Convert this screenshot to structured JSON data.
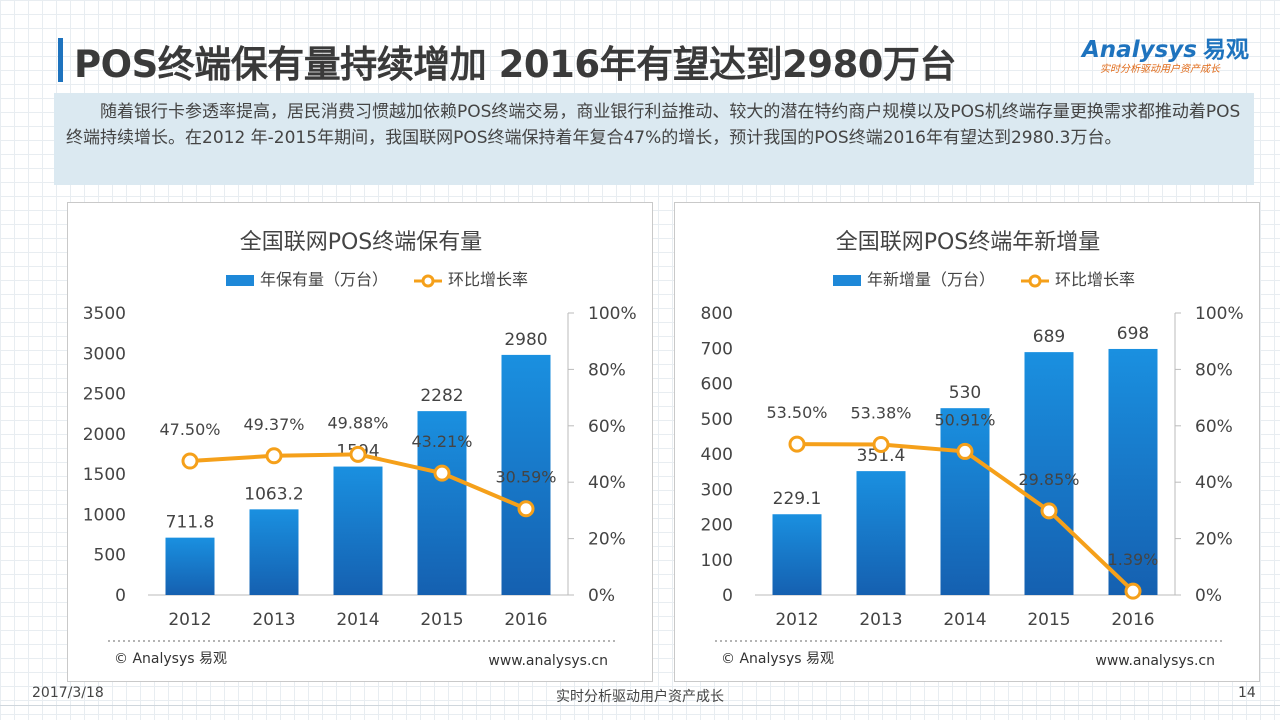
{
  "header": {
    "title": "POS终端保有量持续增加 2016年有望达到2980万台",
    "accent_color": "#1e73be"
  },
  "logo": {
    "brand_en": "Analysys",
    "brand_cn": "易观",
    "slogan": "实时分析驱动用户资产成长"
  },
  "summary": {
    "text": "随着银行卡参透率提高，居民消费习惯越加依赖POS终端交易，商业银行利益推动、较大的潜在特约商户规模以及POS机终端存量更换需求都推动着POS 终端持续增长。在2012 年-2015年期间，我国联网POS终端保持着年复合47%的增长，预计我国的POS终端2016年有望达到2980.3万台。"
  },
  "panel_meta": {
    "copyright": "© Analysys 易观",
    "website": "www.analysys.cn"
  },
  "chart_data": [
    {
      "type": "bar",
      "title": "全国联网POS终端保有量",
      "categories": [
        "2012",
        "2013",
        "2014",
        "2015",
        "2016"
      ],
      "series": [
        {
          "name": "年保有量（万台）",
          "type": "bar",
          "axis": "left",
          "values": [
            711.8,
            1063.2,
            1594,
            2282,
            2980
          ],
          "labels": [
            "711.8",
            "1063.2",
            "1594",
            "2282",
            "2980"
          ],
          "color": "#1e88d8"
        },
        {
          "name": "环比增长率",
          "type": "line",
          "axis": "right",
          "values": [
            47.5,
            49.37,
            49.88,
            43.21,
            30.59
          ],
          "labels": [
            "47.50%",
            "49.37%",
            "49.88%",
            "43.21%",
            "30.59%"
          ],
          "color": "#f5a01a"
        }
      ],
      "y_left": {
        "min": 0,
        "max": 3500,
        "ticks": [
          "0",
          "500",
          "1000",
          "1500",
          "2000",
          "2500",
          "3000",
          "3500"
        ]
      },
      "y_right": {
        "min": 0,
        "max": 100,
        "ticks": [
          "0%",
          "20%",
          "40%",
          "60%",
          "80%",
          "100%"
        ]
      },
      "legend_position": "top-center",
      "grid": false
    },
    {
      "type": "bar",
      "title": "全国联网POS终端年新增量",
      "categories": [
        "2012",
        "2013",
        "2014",
        "2015",
        "2016"
      ],
      "series": [
        {
          "name": "年新增量（万台）",
          "type": "bar",
          "axis": "left",
          "values": [
            229.1,
            351.4,
            530,
            689,
            698
          ],
          "labels": [
            "229.1",
            "351.4",
            "530",
            "689",
            "698"
          ],
          "color": "#1e88d8"
        },
        {
          "name": "环比增长率",
          "type": "line",
          "axis": "right",
          "values": [
            53.5,
            53.38,
            50.91,
            29.85,
            1.39
          ],
          "labels": [
            "53.50%",
            "53.38%",
            "50.91%",
            "29.85%",
            "1.39%"
          ],
          "color": "#f5a01a"
        }
      ],
      "y_left": {
        "min": 0,
        "max": 800,
        "ticks": [
          "0",
          "100",
          "200",
          "300",
          "400",
          "500",
          "600",
          "700",
          "800"
        ]
      },
      "y_right": {
        "min": 0,
        "max": 100,
        "ticks": [
          "0%",
          "20%",
          "40%",
          "60%",
          "80%",
          "100%"
        ]
      },
      "legend_position": "top-center",
      "grid": false
    }
  ],
  "footer": {
    "date": "2017/3/18",
    "slogan": "实时分析驱动用户资产成长",
    "page": "14"
  }
}
